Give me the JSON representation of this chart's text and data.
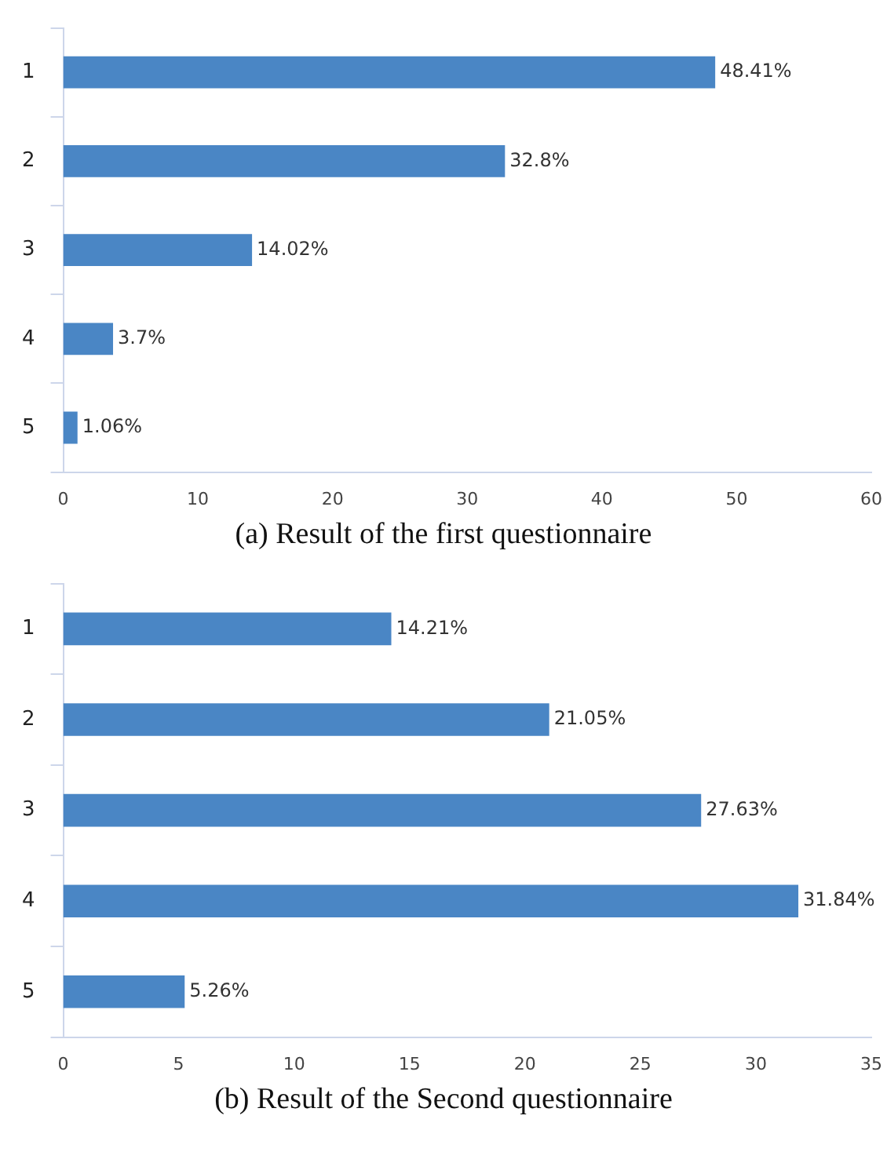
{
  "chart_data": [
    {
      "type": "bar",
      "orientation": "horizontal",
      "categories": [
        "1",
        "2",
        "3",
        "4",
        "5"
      ],
      "values": [
        48.41,
        32.8,
        14.02,
        3.7,
        1.06
      ],
      "value_labels": [
        "48.41%",
        "32.8%",
        "14.02%",
        "3.7%",
        "1.06%"
      ],
      "color": "#4a86c5",
      "xlim": [
        0,
        60
      ],
      "xticks": [
        0,
        10,
        20,
        30,
        40,
        50,
        60
      ],
      "grid": false,
      "legend": false,
      "annotations": [
        "(a) Result of the first questionnaire"
      ]
    },
    {
      "type": "bar",
      "orientation": "horizontal",
      "categories": [
        "1",
        "2",
        "3",
        "4",
        "5"
      ],
      "values": [
        14.21,
        21.05,
        27.63,
        31.84,
        5.26
      ],
      "value_labels": [
        "14.21%",
        "21.05%",
        "27.63%",
        "31.84%",
        "5.26%"
      ],
      "color": "#4a86c5",
      "xlim": [
        0,
        35
      ],
      "xticks": [
        0,
        5,
        10,
        15,
        20,
        25,
        30,
        35
      ],
      "grid": false,
      "legend": false,
      "annotations": [
        "(b) Result of the Second questionnaire"
      ]
    }
  ]
}
